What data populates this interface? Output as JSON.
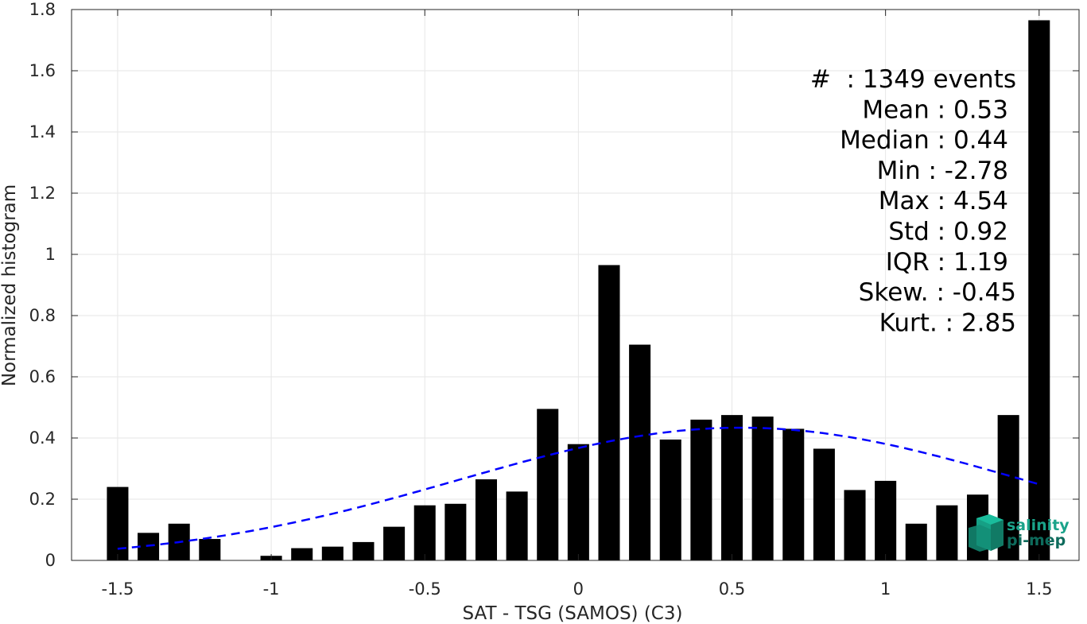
{
  "chart_data": {
    "type": "bar",
    "xlabel": "SAT - TSG (SAMOS) (C3)",
    "ylabel": "Normalized histogram",
    "xlim": [
      -1.65,
      1.63
    ],
    "ylim": [
      0,
      1.8
    ],
    "x_ticks": [
      -1.5,
      -1,
      -0.5,
      0,
      0.5,
      1,
      1.5
    ],
    "x_tick_labels": [
      "-1.5",
      "-1",
      "-0.5",
      "0",
      "0.5",
      "1",
      "1.5"
    ],
    "y_ticks": [
      0,
      0.2,
      0.4,
      0.6,
      0.8,
      1,
      1.2,
      1.4,
      1.6,
      1.8
    ],
    "y_tick_labels": [
      "0",
      "0.2",
      "0.4",
      "0.6",
      "0.8",
      "1",
      "1.2",
      "1.4",
      "1.6",
      "1.8"
    ],
    "grid": true,
    "bar_width": 0.07,
    "bar_color": "#000000",
    "x": [
      -1.5,
      -1.4,
      -1.3,
      -1.2,
      -1.1,
      -1.0,
      -0.9,
      -0.8,
      -0.7,
      -0.6,
      -0.5,
      -0.4,
      -0.3,
      -0.2,
      -0.1,
      0.0,
      0.1,
      0.2,
      0.3,
      0.4,
      0.5,
      0.6,
      0.7,
      0.8,
      0.9,
      1.0,
      1.1,
      1.2,
      1.3,
      1.4,
      1.5
    ],
    "values": [
      0.24,
      0.09,
      0.12,
      0.07,
      0.0,
      0.015,
      0.04,
      0.045,
      0.06,
      0.11,
      0.18,
      0.185,
      0.265,
      0.225,
      0.495,
      0.38,
      0.965,
      0.705,
      0.395,
      0.46,
      0.475,
      0.47,
      0.43,
      0.365,
      0.23,
      0.26,
      0.12,
      0.18,
      0.215,
      0.475,
      1.765
    ],
    "fit_curve": {
      "type": "gaussian",
      "mean": 0.53,
      "std": 0.92,
      "x_range": [
        -1.5,
        1.5
      ],
      "color": "#0000ff",
      "style": "dashed"
    },
    "annotations": [
      "#  : 1349 events",
      "Mean : 0.53",
      "Median : 0.44",
      "Min : -2.78",
      "Max : 4.54",
      "Std : 0.92",
      "IQR : 1.19",
      "Skew. : -0.45",
      "Kurt. : 2.85"
    ]
  },
  "logo": {
    "line1": "salinity",
    "line2": "pi-mep",
    "color": "#1aa38a"
  }
}
